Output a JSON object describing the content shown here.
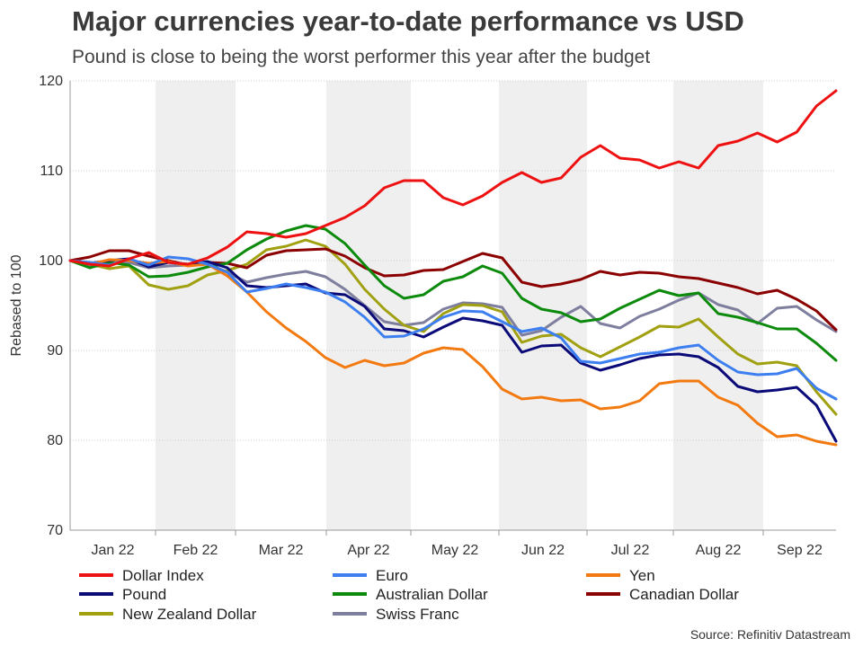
{
  "chart_data": {
    "type": "line",
    "title": "Major currencies year-to-date performance vs USD",
    "subtitle": "Pound is close to being the worst performer this year after the budget",
    "xlabel": "",
    "ylabel": "Rebased to 100",
    "ylim": [
      70,
      120
    ],
    "yticks": [
      70,
      80,
      90,
      100,
      110,
      120
    ],
    "months": [
      "Jan 22",
      "Feb 22",
      "Mar 22",
      "Apr 22",
      "May 22",
      "Jun 22",
      "Jul 22",
      "Aug 22",
      "Sep 22"
    ],
    "x": [
      "Jan 1",
      "Jan 8",
      "Jan 15",
      "Jan 22",
      "Jan 29",
      "Feb 5",
      "Feb 12",
      "Feb 19",
      "Feb 26",
      "Mar 5",
      "Mar 12",
      "Mar 19",
      "Mar 26",
      "Apr 2",
      "Apr 9",
      "Apr 16",
      "Apr 23",
      "Apr 30",
      "May 7",
      "May 14",
      "May 21",
      "May 28",
      "Jun 4",
      "Jun 11",
      "Jun 18",
      "Jun 25",
      "Jul 2",
      "Jul 9",
      "Jul 16",
      "Jul 23",
      "Jul 30",
      "Aug 6",
      "Aug 13",
      "Aug 20",
      "Aug 27",
      "Sep 3",
      "Sep 10",
      "Sep 17",
      "Sep 24",
      "Sep 28"
    ],
    "series": [
      {
        "name": "Dollar Index",
        "color": "#ee1111",
        "values": [
          100,
          99.6,
          99.4,
          100.2,
          100.9,
          99.8,
          99.6,
          100.3,
          101.5,
          103.2,
          103.0,
          102.6,
          103.0,
          103.9,
          104.8,
          106.1,
          108.1,
          108.9,
          108.9,
          107.0,
          106.2,
          107.2,
          108.7,
          109.8,
          108.7,
          109.2,
          111.5,
          112.8,
          111.4,
          111.2,
          110.3,
          111.0,
          110.3,
          112.8,
          113.3,
          114.2,
          113.2,
          114.3,
          117.2,
          118.9
        ]
      },
      {
        "name": "Euro",
        "color": "#3d7ff0",
        "values": [
          100,
          99.8,
          99.5,
          100.2,
          99.5,
          100.4,
          100.2,
          99.6,
          98.7,
          96.5,
          96.9,
          97.4,
          97.0,
          96.5,
          95.4,
          93.7,
          91.5,
          91.6,
          92.4,
          93.7,
          94.4,
          94.3,
          93.2,
          92.1,
          92.5,
          91.4,
          88.8,
          88.6,
          89.1,
          89.6,
          89.8,
          90.3,
          90.6,
          88.9,
          87.6,
          87.3,
          87.4,
          88.0,
          85.8,
          84.6
        ]
      },
      {
        "name": "Yen",
        "color": "#f27a10",
        "values": [
          100,
          99.6,
          100.1,
          100.0,
          99.7,
          99.9,
          99.4,
          99.6,
          98.3,
          96.5,
          94.3,
          92.5,
          91.0,
          89.2,
          88.1,
          88.9,
          88.3,
          88.6,
          89.7,
          90.3,
          90.1,
          88.2,
          85.7,
          84.6,
          84.8,
          84.4,
          84.5,
          83.5,
          83.7,
          84.4,
          86.3,
          86.6,
          86.6,
          84.8,
          83.9,
          81.9,
          80.4,
          80.6,
          79.9,
          79.5
        ]
      },
      {
        "name": "Pound",
        "color": "#0a0a78",
        "values": [
          100,
          99.7,
          100.0,
          100.2,
          99.3,
          99.8,
          99.6,
          99.9,
          99.2,
          97.2,
          97.0,
          97.2,
          97.4,
          96.4,
          96.2,
          94.9,
          92.4,
          92.2,
          91.5,
          92.6,
          93.6,
          93.3,
          92.8,
          89.8,
          90.5,
          90.6,
          88.6,
          87.8,
          88.4,
          89.1,
          89.5,
          89.6,
          89.3,
          88.1,
          86.0,
          85.4,
          85.6,
          85.9,
          83.9,
          79.9
        ]
      },
      {
        "name": "Australian Dollar",
        "color": "#0c8a0c",
        "values": [
          100,
          99.2,
          99.8,
          99.5,
          98.2,
          98.3,
          98.7,
          99.3,
          99.7,
          101.2,
          102.4,
          103.3,
          103.9,
          103.5,
          101.9,
          99.5,
          97.2,
          95.8,
          96.2,
          97.7,
          98.2,
          99.4,
          98.6,
          95.8,
          94.6,
          94.2,
          93.2,
          93.5,
          94.7,
          95.7,
          96.7,
          96.1,
          96.4,
          94.1,
          93.7,
          93.1,
          92.4,
          92.4,
          90.8,
          88.9
        ]
      },
      {
        "name": "Canadian Dollar",
        "color": "#8b0000",
        "values": [
          100,
          100.4,
          101.1,
          101.1,
          100.5,
          100.0,
          99.5,
          99.8,
          99.7,
          99.2,
          100.6,
          101.1,
          101.2,
          101.3,
          100.5,
          99.2,
          98.3,
          98.4,
          98.9,
          99.0,
          99.9,
          100.8,
          100.3,
          97.6,
          97.1,
          97.4,
          97.9,
          98.8,
          98.4,
          98.7,
          98.6,
          98.2,
          98.0,
          97.5,
          97.0,
          96.3,
          96.7,
          95.7,
          94.4,
          92.3
        ]
      },
      {
        "name": "New Zealand Dollar",
        "color": "#a0a010",
        "values": [
          100,
          99.6,
          99.1,
          99.4,
          97.3,
          96.8,
          97.2,
          98.4,
          98.9,
          99.6,
          101.2,
          101.6,
          102.3,
          101.6,
          99.6,
          96.8,
          94.6,
          92.8,
          92.1,
          94.1,
          95.1,
          95.0,
          94.3,
          90.9,
          91.6,
          91.8,
          90.3,
          89.3,
          90.4,
          91.5,
          92.7,
          92.6,
          93.5,
          91.5,
          89.6,
          88.5,
          88.7,
          88.3,
          85.4,
          82.9
        ]
      },
      {
        "name": "Swiss Franc",
        "color": "#7e7e9e",
        "values": [
          100,
          99.4,
          99.7,
          99.8,
          99.2,
          99.4,
          99.5,
          99.7,
          98.7,
          97.6,
          98.1,
          98.5,
          98.8,
          98.2,
          96.8,
          95.0,
          93.2,
          92.8,
          93.1,
          94.6,
          95.3,
          95.2,
          94.8,
          91.7,
          92.2,
          93.7,
          94.9,
          93.0,
          92.5,
          93.8,
          94.6,
          95.6,
          96.4,
          95.1,
          94.5,
          93.0,
          94.7,
          94.9,
          93.4,
          92.1
        ]
      }
    ],
    "legend_position": "bottom",
    "grid": "horizontal dotted"
  },
  "source": "Source: Refinitiv Datastream"
}
